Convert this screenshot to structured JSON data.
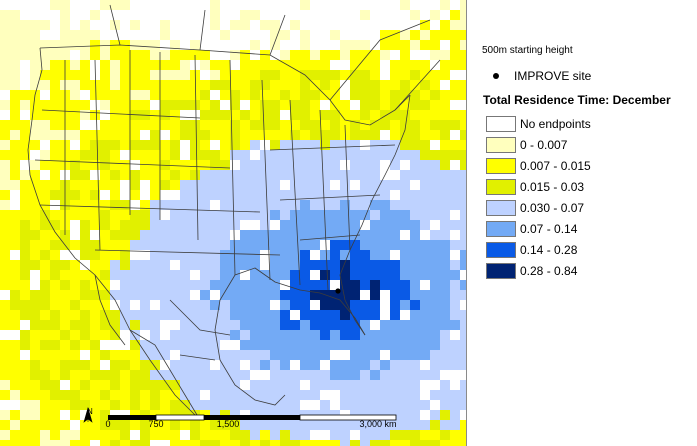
{
  "legend": {
    "starting_height": "500m starting height",
    "site_label": "IMPROVE site",
    "title": "Total Residence Time: December",
    "classes": [
      {
        "label": "No endpoints",
        "color": "#ffffff"
      },
      {
        "label": "0 - 0.007",
        "color": "#ffffbe"
      },
      {
        "label": "0.007 - 0.015",
        "color": "#ffff00"
      },
      {
        "label": "0.015 - 0.03",
        "color": "#e1f000"
      },
      {
        "label": "0.030 - 0.07",
        "color": "#bed2ff"
      },
      {
        "label": "0.07 - 0.14",
        "color": "#73aaf5"
      },
      {
        "label": "0.14 - 0.28",
        "color": "#0a5ae6"
      },
      {
        "label": "0.28 - 0.84",
        "color": "#002373"
      }
    ]
  },
  "scale_bar": {
    "labels": [
      "0",
      "750",
      "1,500",
      "3,000 km"
    ]
  },
  "north_arrow": {
    "label": "N"
  },
  "colors": {
    "boundary": "#3c3c3c",
    "site_marker": "#000000",
    "panel_border": "#8a8a8a"
  }
}
